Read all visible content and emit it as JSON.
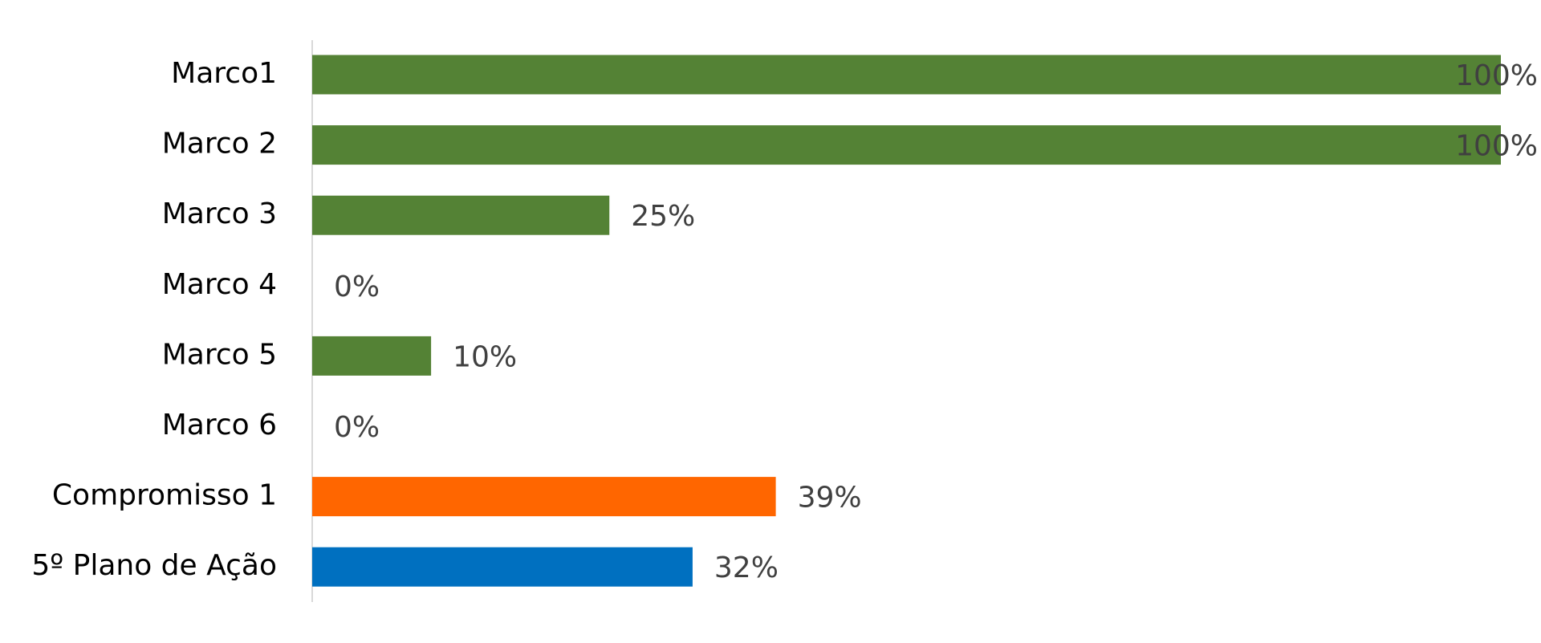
{
  "chart_data": {
    "type": "bar",
    "orientation": "horizontal",
    "categories": [
      "Marco1",
      "Marco 2",
      "Marco 3",
      "Marco 4",
      "Marco 5",
      "Marco 6",
      "Compromisso 1",
      "5º Plano de Ação"
    ],
    "values": [
      100,
      100,
      25,
      0,
      10,
      0,
      39,
      32
    ],
    "value_labels": [
      "100%",
      "100%",
      "25%",
      "0%",
      "10%",
      "0%",
      "39%",
      "32%"
    ],
    "colors": [
      "#548235",
      "#548235",
      "#548235",
      "#548235",
      "#548235",
      "#548235",
      "#ff6600",
      "#0070c0"
    ],
    "xlim": [
      0,
      100
    ]
  }
}
